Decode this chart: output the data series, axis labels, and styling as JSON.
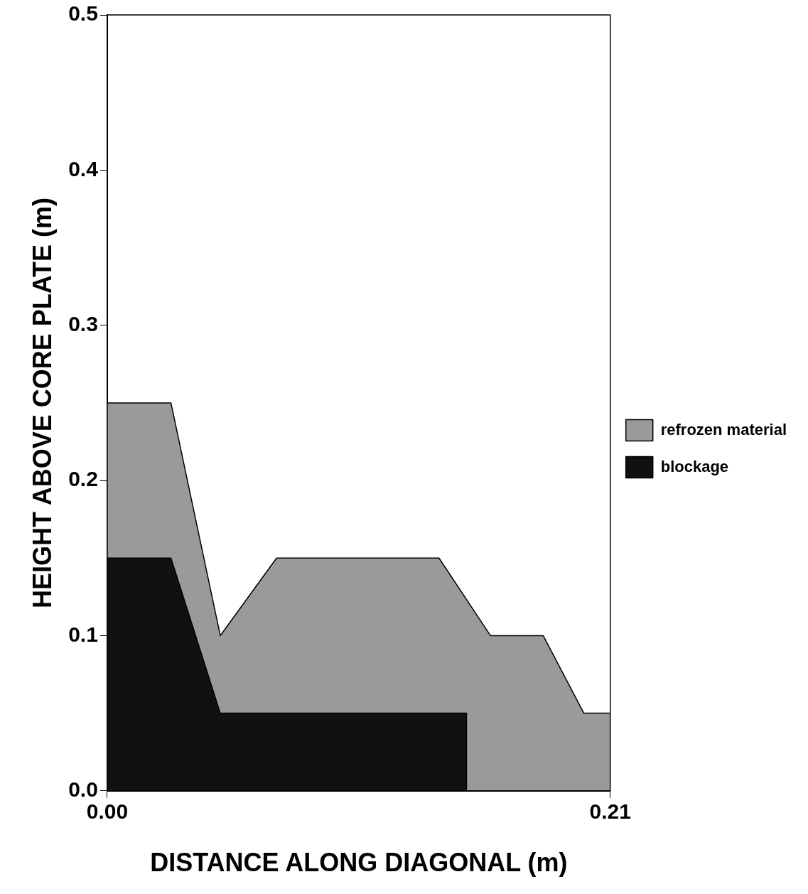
{
  "chart_data": {
    "type": "area",
    "xlabel": "DISTANCE ALONG DIAGONAL (m)",
    "ylabel": "HEIGHT ABOVE CORE PLATE (m)",
    "xlim": [
      0,
      0.21
    ],
    "xticks": [
      {
        "value": 0,
        "label": "0.00"
      },
      0.21
    ],
    "ylim": [
      0,
      0.5
    ],
    "yticks": [
      {
        "value": 0,
        "label": "0.0"
      },
      0.1,
      0.2,
      0.3,
      0.4,
      0.5
    ],
    "grid": false,
    "legend": "right",
    "series": [
      {
        "name": "refrozen material",
        "color": "#9a9a9a",
        "x": [
          0,
          0.0266,
          0.0472,
          0.0707,
          0.1385,
          0.16,
          0.182,
          0.199,
          0.21
        ],
        "values": [
          0.25,
          0.25,
          0.1,
          0.15,
          0.15,
          0.1,
          0.1,
          0.05,
          0.05
        ]
      },
      {
        "name": "blockage",
        "color": "#111111",
        "x": [
          0,
          0.0266,
          0.0472,
          0.15,
          0.15
        ],
        "values": [
          0.15,
          0.15,
          0.05,
          0.05,
          0
        ]
      }
    ]
  }
}
